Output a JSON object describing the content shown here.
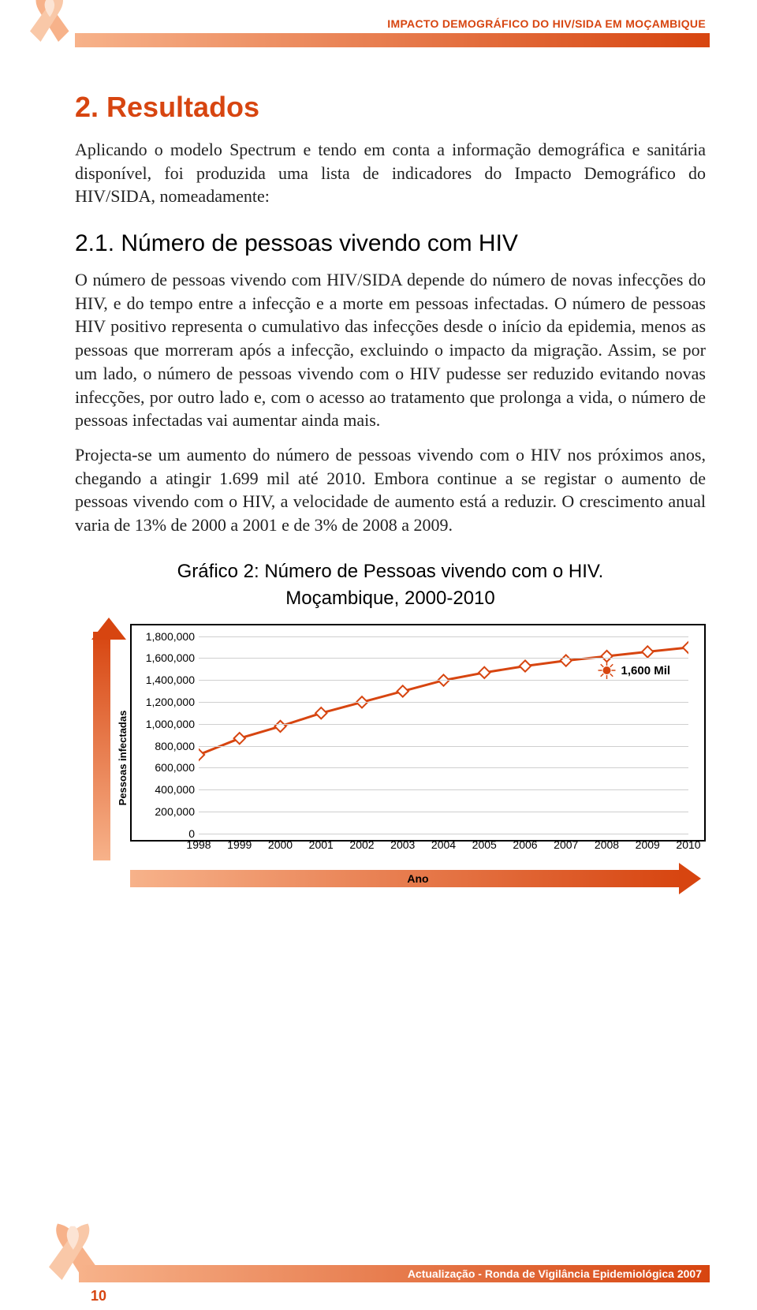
{
  "header": {
    "label": "IMPACTO DEMOGRÁFICO DO HIV/SIDA EM MOÇAMBIQUE",
    "ribbon_color_light": "#f7b28a",
    "ribbon_color_dark": "#d74510"
  },
  "section": {
    "title": "2.  Resultados",
    "intro": "Aplicando o modelo Spectrum e tendo em conta a informação demográfica e sanitária disponível, foi produzida uma lista de indicadores do Impacto Demográfico do HIV/SIDA, nomeadamente:",
    "subtitle": "2.1.  Número de pessoas vivendo com HIV",
    "p1": "O número de pessoas vivendo com HIV/SIDA depende do número de novas infecções do HIV, e do tempo entre a infecção e a morte em pessoas infectadas. O número de pessoas HIV positivo representa o cumulativo das infecções desde o início da epidemia, menos as pessoas que morreram após a infecção, excluindo o impacto da migração. Assim, se por um lado, o número de pessoas vivendo com o HIV pudesse ser reduzido evitando novas infecções, por outro lado e, com o acesso ao tratamento que prolonga a vida, o número de pessoas infectadas vai aumentar ainda mais.",
    "p2": "Projecta-se um aumento do número de pessoas vivendo com o HIV nos próximos anos, chegando a atingir 1.699 mil até 2010. Embora continue a se registar o aumento de pessoas vivendo com o HIV, a velocidade de aumento está a reduzir. O crescimento anual varia de 13% de 2000 a 2001 e de 3% de 2008 a 2009."
  },
  "chart": {
    "type": "line",
    "title": "Gráfico 2: Número de Pessoas vivendo com o HIV.",
    "subtitle": "Moçambique, 2000-2010",
    "ylabel": "Pessoas infectadas",
    "xlabel": "Ano",
    "y_ticks": [
      "0",
      "200,000",
      "400,000",
      "600,000",
      "800,000",
      "1,000,000",
      "1,200,000",
      "1,400,000",
      "1,600,000",
      "1,800,000"
    ],
    "ymin": 0,
    "ymax": 1800000,
    "x_ticks": [
      "1998",
      "1999",
      "2000",
      "2001",
      "2002",
      "2003",
      "2004",
      "2005",
      "2006",
      "2007",
      "2008",
      "2009",
      "2010"
    ],
    "values": [
      720000,
      870000,
      980000,
      1100000,
      1200000,
      1300000,
      1400000,
      1470000,
      1530000,
      1580000,
      1620000,
      1660000,
      1699000
    ],
    "callout_label": "1,600 Mil",
    "callout_x_index": 10,
    "line_color": "#d74510",
    "line_width": 3,
    "marker_shape": "diamond",
    "marker_border": "#d74510",
    "marker_fill": "#ffffff",
    "marker_size": 10,
    "grid_color": "#cfcfcf",
    "background_color": "#ffffff",
    "border_color": "#000000",
    "axis_font_size": 14,
    "title_font_size": 24
  },
  "footer": {
    "page": "10",
    "text": "Actualização - Ronda  de Vigilância Epidemiológica 2007"
  }
}
